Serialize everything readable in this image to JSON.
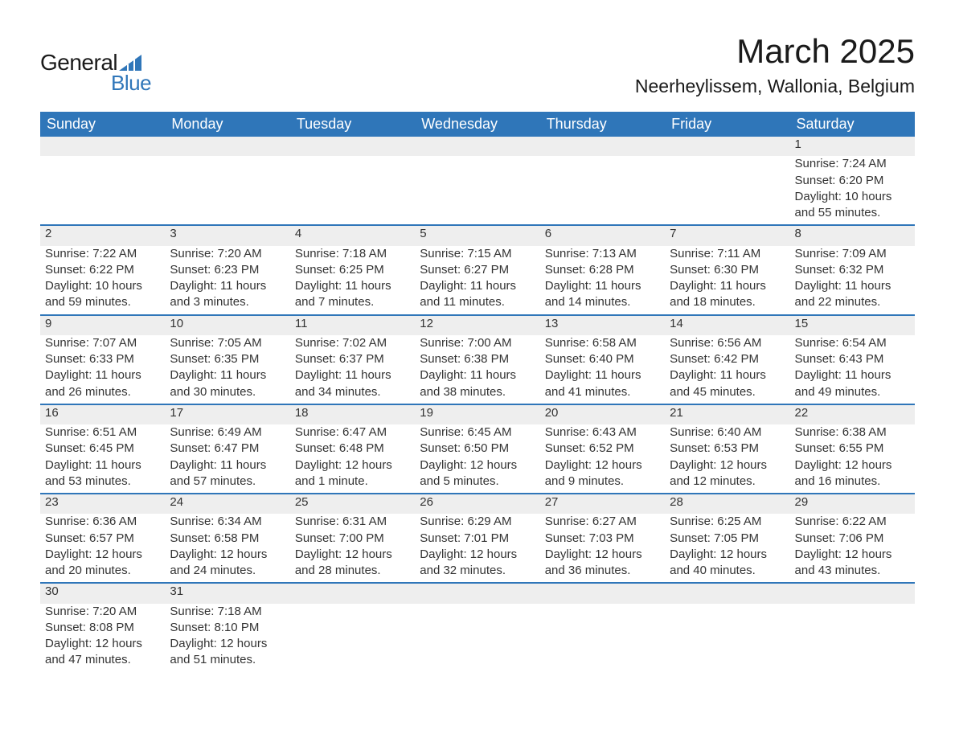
{
  "brand": {
    "word1": "General",
    "word2": "Blue",
    "triangle_color": "#2f76b9"
  },
  "header": {
    "title": "March 2025",
    "location": "Neerheylissem, Wallonia, Belgium"
  },
  "calendar": {
    "type": "table",
    "header_bg": "#2f76b9",
    "header_fg": "#ffffff",
    "row_divider_color": "#2f76b9",
    "daynum_bg": "#eeeeee",
    "text_color": "#333333",
    "columns": [
      "Sunday",
      "Monday",
      "Tuesday",
      "Wednesday",
      "Thursday",
      "Friday",
      "Saturday"
    ],
    "weeks": [
      [
        null,
        null,
        null,
        null,
        null,
        null,
        {
          "d": "1",
          "sunrise": "7:24 AM",
          "sunset": "6:20 PM",
          "daylight": "10 hours and 55 minutes."
        }
      ],
      [
        {
          "d": "2",
          "sunrise": "7:22 AM",
          "sunset": "6:22 PM",
          "daylight": "10 hours and 59 minutes."
        },
        {
          "d": "3",
          "sunrise": "7:20 AM",
          "sunset": "6:23 PM",
          "daylight": "11 hours and 3 minutes."
        },
        {
          "d": "4",
          "sunrise": "7:18 AM",
          "sunset": "6:25 PM",
          "daylight": "11 hours and 7 minutes."
        },
        {
          "d": "5",
          "sunrise": "7:15 AM",
          "sunset": "6:27 PM",
          "daylight": "11 hours and 11 minutes."
        },
        {
          "d": "6",
          "sunrise": "7:13 AM",
          "sunset": "6:28 PM",
          "daylight": "11 hours and 14 minutes."
        },
        {
          "d": "7",
          "sunrise": "7:11 AM",
          "sunset": "6:30 PM",
          "daylight": "11 hours and 18 minutes."
        },
        {
          "d": "8",
          "sunrise": "7:09 AM",
          "sunset": "6:32 PM",
          "daylight": "11 hours and 22 minutes."
        }
      ],
      [
        {
          "d": "9",
          "sunrise": "7:07 AM",
          "sunset": "6:33 PM",
          "daylight": "11 hours and 26 minutes."
        },
        {
          "d": "10",
          "sunrise": "7:05 AM",
          "sunset": "6:35 PM",
          "daylight": "11 hours and 30 minutes."
        },
        {
          "d": "11",
          "sunrise": "7:02 AM",
          "sunset": "6:37 PM",
          "daylight": "11 hours and 34 minutes."
        },
        {
          "d": "12",
          "sunrise": "7:00 AM",
          "sunset": "6:38 PM",
          "daylight": "11 hours and 38 minutes."
        },
        {
          "d": "13",
          "sunrise": "6:58 AM",
          "sunset": "6:40 PM",
          "daylight": "11 hours and 41 minutes."
        },
        {
          "d": "14",
          "sunrise": "6:56 AM",
          "sunset": "6:42 PM",
          "daylight": "11 hours and 45 minutes."
        },
        {
          "d": "15",
          "sunrise": "6:54 AM",
          "sunset": "6:43 PM",
          "daylight": "11 hours and 49 minutes."
        }
      ],
      [
        {
          "d": "16",
          "sunrise": "6:51 AM",
          "sunset": "6:45 PM",
          "daylight": "11 hours and 53 minutes."
        },
        {
          "d": "17",
          "sunrise": "6:49 AM",
          "sunset": "6:47 PM",
          "daylight": "11 hours and 57 minutes."
        },
        {
          "d": "18",
          "sunrise": "6:47 AM",
          "sunset": "6:48 PM",
          "daylight": "12 hours and 1 minute."
        },
        {
          "d": "19",
          "sunrise": "6:45 AM",
          "sunset": "6:50 PM",
          "daylight": "12 hours and 5 minutes."
        },
        {
          "d": "20",
          "sunrise": "6:43 AM",
          "sunset": "6:52 PM",
          "daylight": "12 hours and 9 minutes."
        },
        {
          "d": "21",
          "sunrise": "6:40 AM",
          "sunset": "6:53 PM",
          "daylight": "12 hours and 12 minutes."
        },
        {
          "d": "22",
          "sunrise": "6:38 AM",
          "sunset": "6:55 PM",
          "daylight": "12 hours and 16 minutes."
        }
      ],
      [
        {
          "d": "23",
          "sunrise": "6:36 AM",
          "sunset": "6:57 PM",
          "daylight": "12 hours and 20 minutes."
        },
        {
          "d": "24",
          "sunrise": "6:34 AM",
          "sunset": "6:58 PM",
          "daylight": "12 hours and 24 minutes."
        },
        {
          "d": "25",
          "sunrise": "6:31 AM",
          "sunset": "7:00 PM",
          "daylight": "12 hours and 28 minutes."
        },
        {
          "d": "26",
          "sunrise": "6:29 AM",
          "sunset": "7:01 PM",
          "daylight": "12 hours and 32 minutes."
        },
        {
          "d": "27",
          "sunrise": "6:27 AM",
          "sunset": "7:03 PM",
          "daylight": "12 hours and 36 minutes."
        },
        {
          "d": "28",
          "sunrise": "6:25 AM",
          "sunset": "7:05 PM",
          "daylight": "12 hours and 40 minutes."
        },
        {
          "d": "29",
          "sunrise": "6:22 AM",
          "sunset": "7:06 PM",
          "daylight": "12 hours and 43 minutes."
        }
      ],
      [
        {
          "d": "30",
          "sunrise": "7:20 AM",
          "sunset": "8:08 PM",
          "daylight": "12 hours and 47 minutes."
        },
        {
          "d": "31",
          "sunrise": "7:18 AM",
          "sunset": "8:10 PM",
          "daylight": "12 hours and 51 minutes."
        },
        null,
        null,
        null,
        null,
        null
      ]
    ],
    "labels": {
      "sunrise": "Sunrise: ",
      "sunset": "Sunset: ",
      "daylight": "Daylight: "
    }
  }
}
